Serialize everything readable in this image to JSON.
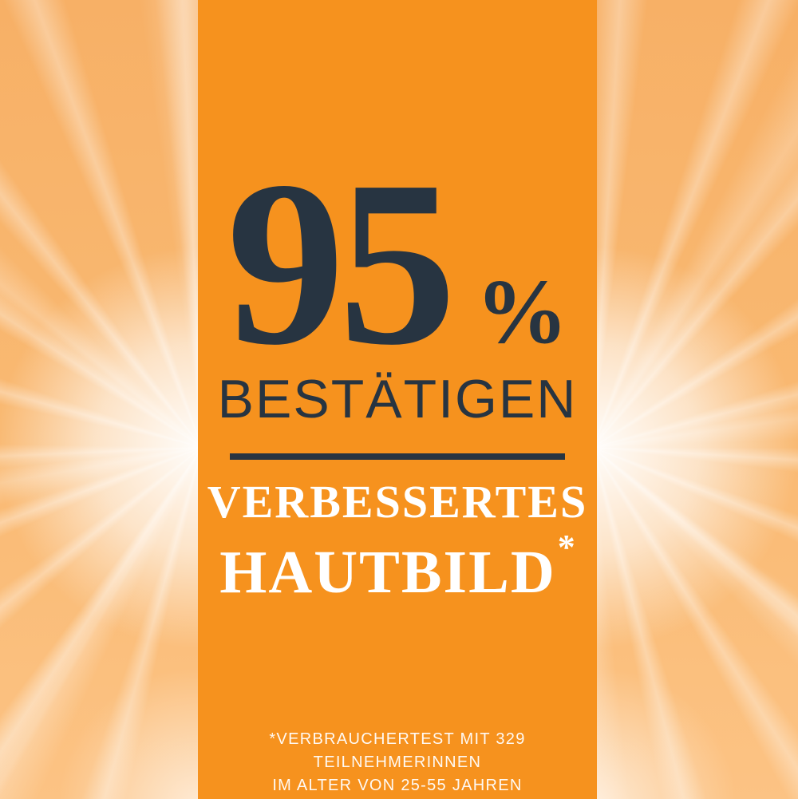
{
  "ad": {
    "stat": {
      "value": "95",
      "unit": "%"
    },
    "headline": "BESTÄTIGEN",
    "claim": {
      "line1": "VERBESSERTES",
      "line2": "HAUTBILD",
      "asterisk": "*"
    },
    "footnote": {
      "line1": "*VERBRAUCHERTEST MIT 329 TEILNEHMERINNEN",
      "line2": "IM ALTER VON 25-55 JAHREN"
    }
  },
  "colors": {
    "panel_orange": "#F6921E",
    "side_orange_top": "#F7B066",
    "side_orange_bottom": "#FCC384",
    "text_navy": "#273441",
    "text_white": "#FFFFFF",
    "sunburst_white": "#FFFFFF"
  }
}
